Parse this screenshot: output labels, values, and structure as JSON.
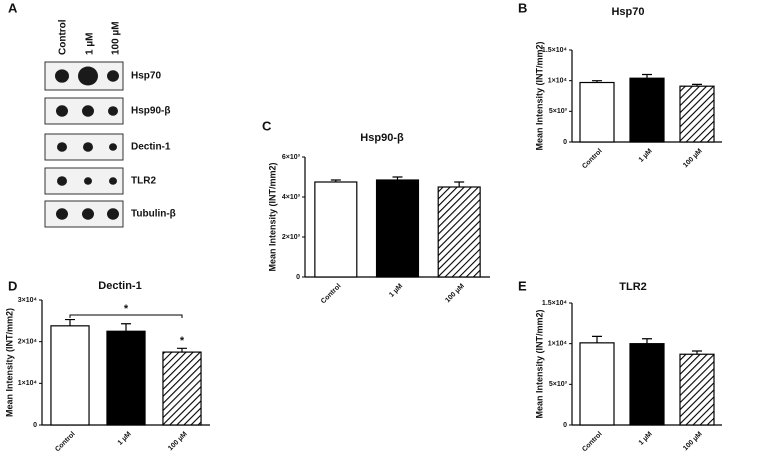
{
  "blot": {
    "panel_label": "A",
    "conditions": [
      "Control",
      "1 µM",
      "100 µM"
    ],
    "proteins": [
      "Hsp70",
      "Hsp90-β",
      "Dectin-1",
      "TLR2",
      "Tubulin-β"
    ]
  },
  "chart_data": [
    {
      "type": "bar",
      "panel_label": "B",
      "title": "Hsp70",
      "y_label": "Mean Intensity (INT/mm2)",
      "categories": [
        "Control",
        "1 µM",
        "100 µM"
      ],
      "values": [
        9700,
        10400,
        9100
      ],
      "errors": [
        300,
        600,
        300
      ],
      "fills": [
        "#ffffff",
        "#000000",
        "#ffffff"
      ],
      "hatch": [
        false,
        false,
        true
      ],
      "ylim": [
        0,
        15000
      ],
      "yticks": [
        0,
        {
          "value": 5000,
          "label": "5×10³"
        },
        {
          "value": 10000,
          "label": "1×10⁴"
        },
        {
          "value": 15000,
          "label": "1.5×10⁴"
        }
      ]
    },
    {
      "type": "bar",
      "panel_label": "C",
      "title": "Hsp90-β",
      "y_label": "Mean Intensity (INT/mm2)",
      "categories": [
        "Control",
        "1 µM",
        "100 µM"
      ],
      "values": [
        4750,
        4850,
        4500
      ],
      "errors": [
        100,
        150,
        250
      ],
      "fills": [
        "#ffffff",
        "#000000",
        "#ffffff"
      ],
      "hatch": [
        false,
        false,
        true
      ],
      "ylim": [
        0,
        6000
      ],
      "yticks": [
        0,
        {
          "value": 2000,
          "label": "2×10³"
        },
        {
          "value": 4000,
          "label": "4×10³"
        },
        {
          "value": 6000,
          "label": "6×10³"
        }
      ]
    },
    {
      "type": "bar",
      "panel_label": "D",
      "title": "Dectin-1",
      "y_label": "Mean Intensity (INT/mm2)",
      "categories": [
        "Control",
        "1 µM",
        "100 µM"
      ],
      "values": [
        23800,
        22500,
        17500
      ],
      "errors": [
        1500,
        1800,
        900
      ],
      "fills": [
        "#ffffff",
        "#000000",
        "#ffffff"
      ],
      "hatch": [
        false,
        false,
        true
      ],
      "ylim": [
        0,
        30000
      ],
      "yticks": [
        0,
        {
          "value": 10000,
          "label": "1×10⁴"
        },
        {
          "value": 20000,
          "label": "2×10⁴"
        },
        {
          "value": 30000,
          "label": "3×10⁴"
        }
      ],
      "annotations": [
        "*",
        "*"
      ]
    },
    {
      "type": "bar",
      "panel_label": "E",
      "title": "TLR2",
      "y_label": "Mean Intensity (INT/mm2)",
      "categories": [
        "Control",
        "1 µM",
        "100 µM"
      ],
      "values": [
        10100,
        10000,
        8700
      ],
      "errors": [
        800,
        600,
        400
      ],
      "fills": [
        "#ffffff",
        "#000000",
        "#ffffff"
      ],
      "hatch": [
        false,
        false,
        true
      ],
      "ylim": [
        0,
        15000
      ],
      "yticks": [
        0,
        {
          "value": 5000,
          "label": "5×10³"
        },
        {
          "value": 10000,
          "label": "1×10⁴"
        },
        {
          "value": 15000,
          "label": "1.5×10⁴"
        }
      ]
    }
  ]
}
